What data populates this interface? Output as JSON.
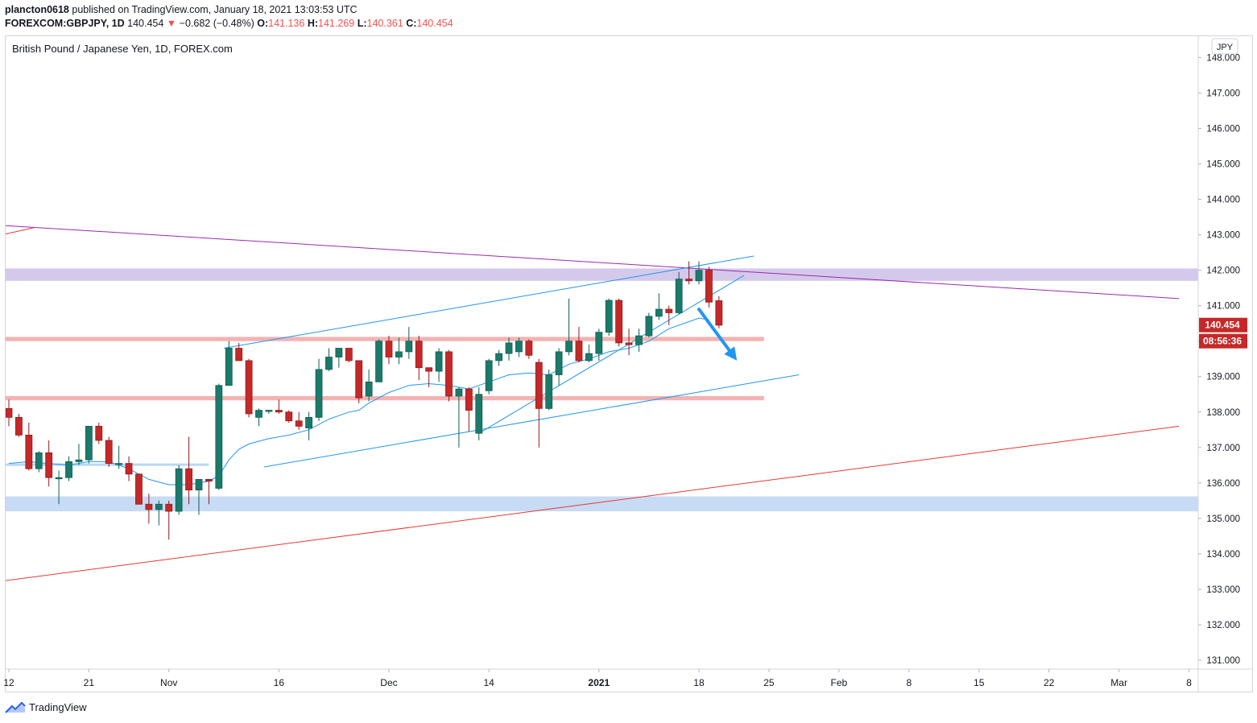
{
  "header": {
    "user": "plancton0618",
    "published_text": "published on TradingView.com, January 18, 2021 13:03:53 UTC",
    "symbol": "FOREXCOM:GBPJPY, 1D",
    "last": "140.454",
    "change_arrow": "▼",
    "change": "−0.682 (−0.48%)",
    "o_label": "O:",
    "o_value": "141.136",
    "h_label": "H:",
    "h_value": "141.269",
    "l_label": "L:",
    "l_value": "140.361",
    "c_label": "C:",
    "c_value": "140.454"
  },
  "legend_title": "British Pound / Japanese Yen, 1D, FOREX.com",
  "footer": {
    "brand": "TradingView"
  },
  "chart_data": {
    "type": "candlestick",
    "currency": "JPY",
    "y_ticks": [
      "148.000",
      "147.000",
      "146.000",
      "145.000",
      "144.000",
      "143.000",
      "142.000",
      "141.000",
      "140.000",
      "139.000",
      "138.000",
      "137.000",
      "136.000",
      "135.000",
      "134.000",
      "133.000",
      "132.000",
      "131.000"
    ],
    "ylim": [
      130.75,
      148.6
    ],
    "x_ticks": [
      {
        "label": "12",
        "idx": 0
      },
      {
        "label": "21",
        "idx": 8
      },
      {
        "label": "Nov",
        "idx": 16
      },
      {
        "label": "16",
        "idx": 27
      },
      {
        "label": "Dec",
        "idx": 38
      },
      {
        "label": "14",
        "idx": 48
      },
      {
        "label": "2021",
        "idx": 59,
        "bold": true
      },
      {
        "label": "18",
        "idx": 69
      },
      {
        "label": "25",
        "idx": 76
      },
      {
        "label": "Feb",
        "idx": 83
      },
      {
        "label": "8",
        "idx": 90
      },
      {
        "label": "15",
        "idx": 97
      },
      {
        "label": "22",
        "idx": 104
      },
      {
        "label": "Mar",
        "idx": 111
      },
      {
        "label": "8",
        "idx": 118
      }
    ],
    "last_price": "140.454",
    "countdown": "08:56:36",
    "colors": {
      "up": "#26a69a",
      "down": "#ef5350",
      "up_fill": "#1b7a6a",
      "down_fill": "#c62828",
      "ma": "#2196f3",
      "trend_blue": "#2196f3",
      "trend_purple": "#9c27b0",
      "trend_red": "#e53935"
    },
    "candles": [
      [
        138.1,
        138.35,
        137.6,
        137.85
      ],
      [
        137.85,
        137.95,
        137.3,
        137.35
      ],
      [
        137.35,
        137.7,
        136.35,
        136.4
      ],
      [
        136.4,
        136.9,
        136.3,
        136.85
      ],
      [
        136.85,
        137.2,
        135.9,
        136.15
      ],
      [
        136.15,
        136.35,
        135.4,
        136.15
      ],
      [
        136.15,
        136.75,
        136.05,
        136.6
      ],
      [
        136.6,
        137.1,
        136.5,
        136.65
      ],
      [
        136.65,
        137.6,
        136.55,
        137.6
      ],
      [
        137.6,
        137.7,
        137.1,
        137.2
      ],
      [
        137.2,
        137.3,
        136.45,
        136.55
      ],
      [
        136.55,
        137.05,
        136.4,
        136.55
      ],
      [
        136.55,
        136.75,
        136.05,
        136.25
      ],
      [
        136.25,
        136.25,
        135.4,
        135.4
      ],
      [
        135.4,
        135.7,
        134.85,
        135.25
      ],
      [
        135.25,
        135.5,
        134.8,
        135.4
      ],
      [
        135.4,
        135.5,
        134.4,
        135.2
      ],
      [
        135.2,
        136.5,
        135.1,
        136.4
      ],
      [
        136.4,
        137.3,
        135.4,
        135.8
      ],
      [
        135.8,
        136.1,
        135.1,
        136.1
      ],
      [
        136.1,
        136.1,
        135.4,
        136.05
      ],
      [
        135.85,
        138.8,
        135.8,
        138.75
      ],
      [
        138.75,
        140.0,
        138.75,
        139.8
      ],
      [
        139.8,
        139.95,
        139.45,
        139.45
      ],
      [
        139.45,
        139.5,
        137.85,
        137.95
      ],
      [
        137.85,
        138.1,
        137.6,
        138.05
      ],
      [
        138.05,
        138.05,
        137.95,
        138.05
      ],
      [
        138.05,
        138.35,
        137.95,
        138.0
      ],
      [
        138.0,
        138.05,
        137.7,
        137.75
      ],
      [
        137.75,
        138.0,
        137.5,
        137.6
      ],
      [
        137.55,
        138.0,
        137.2,
        137.85
      ],
      [
        137.85,
        139.5,
        137.75,
        139.2
      ],
      [
        139.2,
        139.8,
        139.15,
        139.55
      ],
      [
        139.55,
        139.8,
        139.25,
        139.8
      ],
      [
        139.8,
        139.8,
        139.4,
        139.45
      ],
      [
        139.45,
        139.4,
        138.25,
        138.4
      ],
      [
        138.45,
        139.2,
        138.3,
        138.85
      ],
      [
        138.85,
        140.05,
        138.85,
        140.0
      ],
      [
        140.0,
        140.15,
        139.35,
        139.55
      ],
      [
        139.55,
        140.1,
        139.35,
        139.7
      ],
      [
        139.7,
        140.4,
        139.5,
        140.0
      ],
      [
        140.0,
        140.15,
        138.9,
        139.25
      ],
      [
        139.25,
        139.25,
        138.7,
        139.15
      ],
      [
        139.15,
        139.8,
        138.85,
        139.7
      ],
      [
        139.7,
        139.75,
        138.3,
        138.45
      ],
      [
        138.45,
        138.7,
        137.0,
        138.65
      ],
      [
        138.65,
        138.7,
        137.45,
        138.05
      ],
      [
        137.4,
        138.7,
        137.2,
        138.5
      ],
      [
        138.6,
        139.5,
        138.5,
        139.45
      ],
      [
        139.45,
        139.75,
        139.3,
        139.65
      ],
      [
        139.65,
        140.1,
        139.45,
        139.95
      ],
      [
        139.7,
        140.1,
        139.55,
        140.0
      ],
      [
        140.0,
        140.05,
        139.5,
        139.6
      ],
      [
        139.4,
        139.5,
        137.0,
        138.1
      ],
      [
        138.1,
        139.2,
        138.05,
        139.05
      ],
      [
        139.05,
        139.8,
        138.75,
        139.7
      ],
      [
        139.7,
        141.2,
        139.6,
        140.0
      ],
      [
        140.0,
        140.4,
        139.4,
        139.45
      ],
      [
        139.45,
        139.9,
        139.4,
        139.65
      ],
      [
        139.65,
        140.35,
        139.45,
        140.25
      ],
      [
        140.25,
        141.2,
        140.15,
        141.15
      ],
      [
        141.15,
        141.2,
        139.85,
        139.95
      ],
      [
        139.95,
        140.35,
        139.6,
        139.9
      ],
      [
        139.9,
        140.35,
        139.7,
        140.15
      ],
      [
        140.15,
        140.8,
        140.1,
        140.7
      ],
      [
        140.7,
        141.35,
        140.6,
        140.9
      ],
      [
        140.9,
        141.0,
        140.45,
        140.8
      ],
      [
        140.8,
        141.95,
        140.75,
        141.75
      ],
      [
        141.75,
        142.25,
        141.6,
        141.7
      ],
      [
        141.7,
        142.25,
        141.6,
        142.0
      ],
      [
        142.0,
        142.1,
        140.95,
        141.1
      ],
      [
        141.14,
        141.27,
        140.36,
        140.45
      ]
    ],
    "ma": [
      [
        0,
        136.55
      ],
      [
        2,
        136.6
      ],
      [
        4,
        136.55
      ],
      [
        6,
        136.5
      ],
      [
        8,
        136.6
      ],
      [
        10,
        136.6
      ],
      [
        12,
        136.4
      ],
      [
        14,
        136.1
      ],
      [
        16,
        135.95
      ],
      [
        18,
        135.95
      ],
      [
        20,
        136.05
      ],
      [
        21,
        136.2
      ],
      [
        22,
        136.65
      ],
      [
        23,
        136.95
      ],
      [
        24,
        137.1
      ],
      [
        26,
        137.25
      ],
      [
        28,
        137.35
      ],
      [
        30,
        137.5
      ],
      [
        32,
        137.8
      ],
      [
        34,
        138.0
      ],
      [
        35,
        138.05
      ],
      [
        36,
        138.25
      ],
      [
        38,
        138.55
      ],
      [
        40,
        138.75
      ],
      [
        42,
        138.8
      ],
      [
        44,
        138.75
      ],
      [
        46,
        138.65
      ],
      [
        48,
        138.85
      ],
      [
        50,
        139.05
      ],
      [
        52,
        139.1
      ],
      [
        54,
        139.05
      ],
      [
        55,
        139.2
      ],
      [
        56,
        139.35
      ],
      [
        58,
        139.5
      ],
      [
        60,
        139.7
      ],
      [
        62,
        139.8
      ],
      [
        64,
        140.0
      ],
      [
        66,
        140.35
      ],
      [
        68,
        140.55
      ],
      [
        69,
        140.65
      ],
      [
        70,
        140.6
      ]
    ],
    "zones": [
      {
        "name": "resistance-zone-purple",
        "from": 141.7,
        "to": 142.05,
        "x0": -1,
        "x1": 200,
        "color": "#b39ddb",
        "opacity": 0.55
      },
      {
        "name": "resistance-zone-red-upper",
        "from": 140.0,
        "to": 140.12,
        "x0": -1,
        "x1": 75.5,
        "color": "#ef9a9a",
        "opacity": 0.75
      },
      {
        "name": "support-zone-red-lower",
        "from": 138.33,
        "to": 138.45,
        "x0": -1,
        "x1": 75.5,
        "color": "#ef9a9a",
        "opacity": 0.75
      },
      {
        "name": "support-zone-blue-light",
        "from": 136.48,
        "to": 136.55,
        "x0": -1,
        "x1": 20,
        "color": "#b3d4f5",
        "opacity": 0.9
      },
      {
        "name": "support-zone-blue",
        "from": 135.2,
        "to": 135.62,
        "x0": -1,
        "x1": 200,
        "color": "#90b8ea",
        "opacity": 0.5
      }
    ],
    "lines": [
      {
        "name": "trendline-purple",
        "p1": [
          -1.0,
          143.27
        ],
        "p2": [
          117.0,
          141.2
        ],
        "color": "#9c27b0",
        "width": 1
      },
      {
        "name": "trendline-red",
        "p1": [
          -1.0,
          133.22
        ],
        "p2": [
          117.0,
          137.6
        ],
        "color": "#e53935",
        "width": 1
      },
      {
        "name": "trendline-red-small",
        "p1": [
          -1.0,
          142.98
        ],
        "p2": [
          2.5,
          143.2
        ],
        "color": "#e53935",
        "width": 1
      },
      {
        "name": "channel-upper",
        "p1": [
          21.5,
          139.8
        ],
        "p2": [
          74.5,
          142.4
        ],
        "color": "#2196f3",
        "width": 1
      },
      {
        "name": "channel-lower",
        "p1": [
          25.5,
          136.45
        ],
        "p2": [
          79.0,
          139.05
        ],
        "color": "#2196f3",
        "width": 1
      },
      {
        "name": "rising-support",
        "p1": [
          47.0,
          137.4
        ],
        "p2": [
          73.5,
          141.85
        ],
        "color": "#2196f3",
        "width": 1
      }
    ],
    "arrow": {
      "from": [
        69.0,
        140.9
      ],
      "to": [
        72.8,
        139.45
      ],
      "color": "#2196f3"
    }
  }
}
